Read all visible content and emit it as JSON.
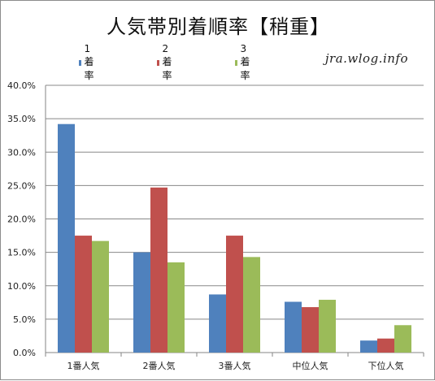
{
  "watermark": "jra.wlog.info",
  "colors": {
    "series_1": "#4f81bd",
    "series_2": "#c0504d",
    "series_3": "#9bbb59"
  },
  "chart_data": {
    "type": "bar",
    "title": "人気帯別着順率【稍重】",
    "xlabel": "",
    "ylabel": "",
    "categories": [
      "1番人気",
      "2番人気",
      "3番人気",
      "中位人気",
      "下位人気"
    ],
    "series": [
      {
        "name": "1着率",
        "values": [
          34.2,
          15.0,
          8.7,
          7.6,
          1.8
        ]
      },
      {
        "name": "2着率",
        "values": [
          17.5,
          24.7,
          17.5,
          6.8,
          2.1
        ]
      },
      {
        "name": "3着率",
        "values": [
          16.7,
          13.5,
          14.3,
          7.9,
          4.1
        ]
      }
    ],
    "ylim": [
      0,
      40
    ],
    "yticks": [
      "0.0%",
      "5.0%",
      "10.0%",
      "15.0%",
      "20.0%",
      "25.0%",
      "30.0%",
      "35.0%",
      "40.0%"
    ],
    "grid": true,
    "legend_position": "top"
  }
}
